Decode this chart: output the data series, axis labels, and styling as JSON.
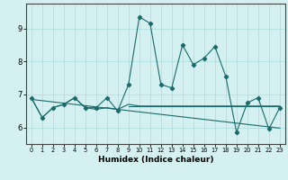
{
  "x": [
    0,
    1,
    2,
    3,
    4,
    5,
    6,
    7,
    8,
    9,
    10,
    11,
    12,
    13,
    14,
    15,
    16,
    17,
    18,
    19,
    20,
    21,
    22,
    23
  ],
  "main_line": [
    6.9,
    6.3,
    6.6,
    6.7,
    6.9,
    6.6,
    6.6,
    6.9,
    6.5,
    7.3,
    9.35,
    9.15,
    7.3,
    7.2,
    8.5,
    7.9,
    8.1,
    8.45,
    7.55,
    5.85,
    6.75,
    6.9,
    5.95,
    6.6
  ],
  "smooth_line_x": [
    0,
    1,
    2,
    3,
    4,
    5,
    6,
    7,
    8,
    9,
    10,
    11,
    12,
    13,
    14,
    15,
    16,
    17,
    18,
    19,
    20,
    21,
    22,
    23
  ],
  "smooth_line_y": [
    6.9,
    6.3,
    6.6,
    6.7,
    6.9,
    6.6,
    6.55,
    6.6,
    6.55,
    6.7,
    6.65,
    6.65,
    6.65,
    6.65,
    6.65,
    6.65,
    6.65,
    6.65,
    6.65,
    6.65,
    6.65,
    6.65,
    6.65,
    6.65
  ],
  "diag_line_x": [
    0,
    23
  ],
  "diag_line_y": [
    6.85,
    5.98
  ],
  "horiz_line_x": [
    9,
    23
  ],
  "horiz_line_y": [
    6.65,
    6.65
  ],
  "line_color": "#1a6b6b",
  "bg_color": "#d4f0f0",
  "grid_color": "#aadddd",
  "xlabel": "Humidex (Indice chaleur)",
  "ylim": [
    5.5,
    9.75
  ],
  "xlim": [
    -0.5,
    23.5
  ],
  "yticks": [
    6,
    7,
    8,
    9
  ],
  "xticks": [
    0,
    1,
    2,
    3,
    4,
    5,
    6,
    7,
    8,
    9,
    10,
    11,
    12,
    13,
    14,
    15,
    16,
    17,
    18,
    19,
    20,
    21,
    22,
    23
  ]
}
